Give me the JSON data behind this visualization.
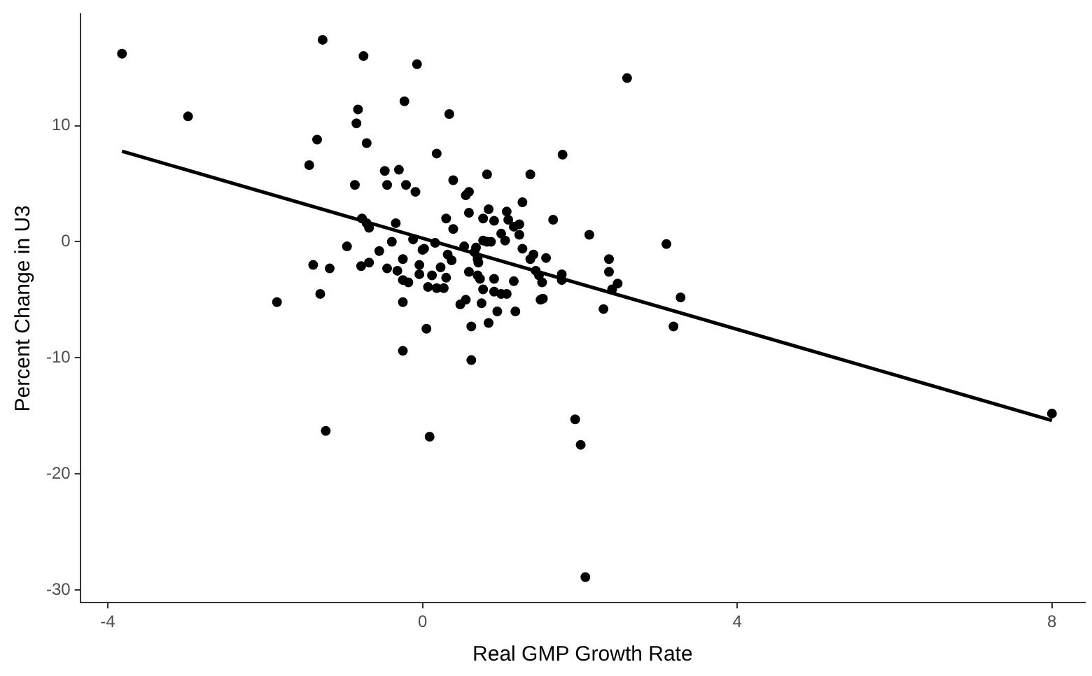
{
  "chart_data": {
    "type": "scatter",
    "xlabel": "Real GMP Growth Rate",
    "ylabel": "Percent Change in U3",
    "xlim": [
      -4.35,
      8.42
    ],
    "ylim": [
      -31.1,
      19.6
    ],
    "xticks": [
      -4,
      0,
      4,
      8
    ],
    "yticks": [
      -30,
      -20,
      -10,
      0,
      10
    ],
    "grid": false,
    "marker": "circle",
    "series": [
      {
        "color": "#000000",
        "x": [
          -3.82,
          -2.98,
          -1.27,
          -0.75,
          -0.07,
          -0.23,
          0.34,
          -0.82,
          -0.84,
          -1.34,
          -0.71,
          0.18,
          1.78,
          -1.44,
          -0.86,
          -0.48,
          -0.3,
          -0.45,
          -0.21,
          -0.09,
          0.39,
          0.82,
          1.37,
          0.59,
          0.55,
          1.27,
          0.84,
          0.59,
          0.77,
          0.91,
          1.07,
          1.09,
          1.16,
          1.23,
          1.66,
          1.0,
          1.05,
          1.23,
          0.77,
          0.82,
          0.87,
          2.12,
          0.53,
          0.68,
          0.66,
          0.7,
          0.71,
          1.27,
          1.41,
          1.37,
          1.57,
          1.44,
          1.48,
          1.52,
          1.77,
          1.77,
          0.59,
          0.7,
          0.73,
          0.91,
          1.16,
          0.77,
          0.91,
          1.0,
          1.07,
          0.55,
          0.48,
          0.75,
          1.5,
          1.53,
          0.95,
          1.18,
          0.62,
          0.84,
          2.3,
          2.37,
          2.37,
          2.48,
          2.41,
          0.62,
          3.1,
          3.28,
          3.19,
          1.94,
          2.01,
          2.07,
          8.0,
          -1.23,
          0.09,
          2.6,
          -0.77,
          -0.71,
          -0.68,
          -0.34,
          -0.96,
          -1.39,
          -1.18,
          -1.3,
          -1.85,
          -0.55,
          -0.68,
          -0.78,
          -0.45,
          -0.32,
          -0.25,
          -0.18,
          -0.25,
          0.05,
          -0.25,
          -0.25,
          -0.04,
          -0.04,
          0.0,
          0.02,
          0.12,
          0.23,
          0.3,
          0.07,
          0.18,
          0.27,
          0.32,
          0.37,
          0.16,
          0.3,
          0.39,
          -0.12,
          -0.39
        ],
        "values": [
          16.2,
          10.8,
          17.4,
          16.0,
          15.3,
          12.1,
          11.0,
          11.4,
          10.2,
          8.8,
          8.5,
          7.6,
          7.5,
          6.6,
          4.9,
          6.1,
          6.2,
          4.9,
          4.9,
          4.3,
          5.3,
          5.8,
          5.8,
          4.3,
          4.0,
          3.4,
          2.8,
          2.5,
          2.0,
          1.8,
          2.6,
          1.9,
          1.3,
          1.5,
          1.9,
          0.7,
          0.1,
          0.6,
          0.1,
          0.0,
          0.0,
          0.6,
          -0.4,
          -0.5,
          -0.9,
          -1.5,
          -1.8,
          -0.6,
          -1.1,
          -1.5,
          -1.4,
          -2.5,
          -2.9,
          -3.5,
          -2.8,
          -3.3,
          -2.6,
          -2.9,
          -3.2,
          -3.2,
          -3.4,
          -4.1,
          -4.3,
          -4.5,
          -4.5,
          -5.0,
          -5.4,
          -5.3,
          -5.0,
          -4.9,
          -6.0,
          -6.0,
          -7.3,
          -7.0,
          -5.8,
          -1.5,
          -2.6,
          -3.6,
          -4.1,
          -10.2,
          -0.2,
          -4.8,
          -7.3,
          -15.3,
          -17.5,
          -28.9,
          -14.8,
          -16.3,
          -16.8,
          14.1,
          2.0,
          1.6,
          1.2,
          1.6,
          -0.4,
          -2.0,
          -2.3,
          -4.5,
          -5.2,
          -0.8,
          -1.8,
          -2.1,
          -2.3,
          -2.5,
          -3.3,
          -3.5,
          -5.2,
          -7.5,
          -9.4,
          -1.5,
          -2.0,
          -2.8,
          -0.7,
          -0.6,
          -2.9,
          -2.2,
          -3.1,
          -3.9,
          -4.0,
          -4.0,
          -1.1,
          -1.6,
          -0.1,
          2.0,
          1.1,
          0.2,
          0.0
        ]
      },
      {
        "type": "line",
        "color": "#000000",
        "marker": "none",
        "x": [
          -3.82,
          8.0
        ],
        "values": [
          7.8,
          -15.4
        ]
      }
    ]
  }
}
